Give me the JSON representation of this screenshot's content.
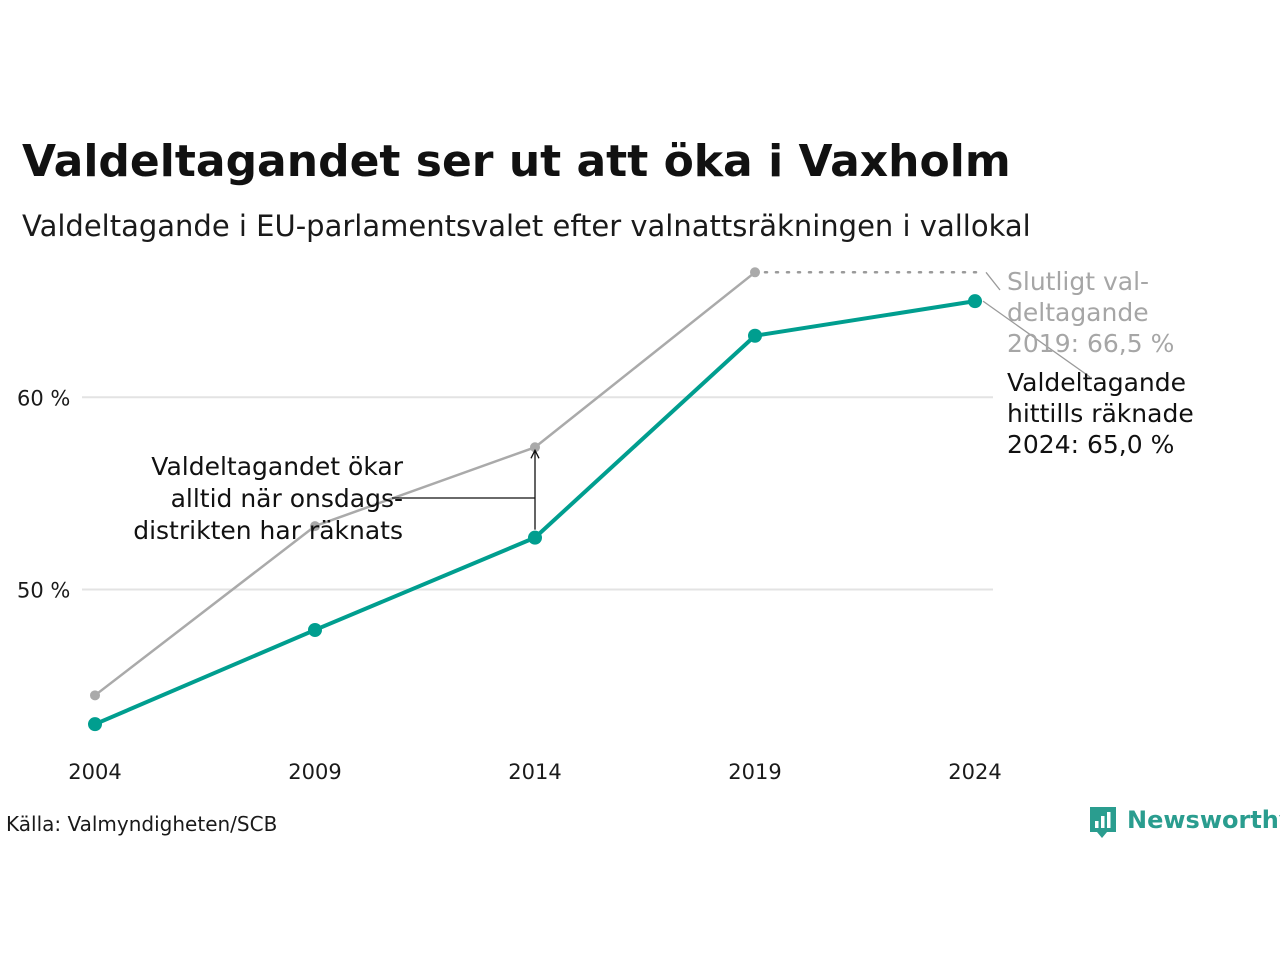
{
  "chart_data": {
    "type": "line",
    "title": "Valdeltagandet ser ut att öka i Vaxholm",
    "subtitle": "Valdeltagande i EU-parlamentsvalet efter valnattsräkningen i vallokal",
    "categories": [
      "2004",
      "2009",
      "2014",
      "2019",
      "2024"
    ],
    "y_ticks": [
      50,
      60
    ],
    "y_tick_labels": [
      "50 %",
      "60 %"
    ],
    "ylim": [
      41.5,
      70
    ],
    "grid": true,
    "series": [
      {
        "name": "Slutligt valdeltagande",
        "color": "#aaaaaa",
        "values": [
          44.5,
          53.3,
          57.4,
          66.5,
          null
        ]
      },
      {
        "name": "Valdeltagande hittills räknade",
        "color": "#009e8f",
        "values": [
          43.0,
          47.9,
          52.7,
          63.2,
          65.0
        ]
      }
    ],
    "annotations": {
      "final_2019_lines": [
        "Slutligt val-",
        "deltagande",
        "2019: 66,5 %"
      ],
      "counted_2024_lines": [
        "Valdeltagande",
        "hittills räknade",
        "2024: 65,0 %"
      ],
      "gap_note_lines": [
        "Valdeltagandet ökar",
        "alltid när onsdags-",
        "distrikten har räknats"
      ]
    },
    "source": "Källa: Valmyndigheten/SCB"
  },
  "brand": {
    "name": "Newsworthy",
    "color": "#2a9d8f",
    "icon": "bar-chart-speech-bubble-icon"
  }
}
